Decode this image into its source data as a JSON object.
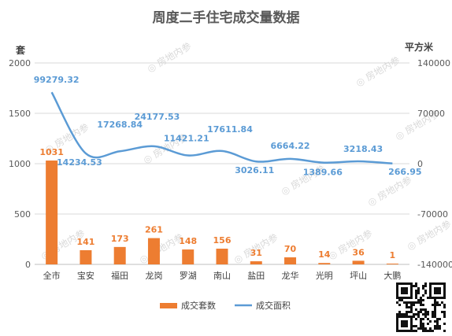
{
  "chart_data": {
    "type": "bar",
    "title": "周度二手住宅成交量数据",
    "ylabel": "套",
    "y2label": "平方米",
    "ylim": [
      0,
      2000
    ],
    "yticks": [
      0,
      500,
      1000,
      1500,
      2000
    ],
    "y2lim": [
      -140000,
      140000
    ],
    "y2ticks": [
      -140000,
      -70000,
      0,
      70000,
      140000
    ],
    "y2tick_labels": [
      "-140000",
      "-70000",
      "0",
      "70000",
      "140000"
    ],
    "categories": [
      "全市",
      "宝安",
      "福田",
      "龙岗",
      "罗湖",
      "南山",
      "盐田",
      "龙华",
      "光明",
      "坪山",
      "大鹏"
    ],
    "series": [
      {
        "name": "成交套数",
        "type": "bar",
        "axis": "left",
        "color": "#ed7d31",
        "values": [
          1031,
          141,
          173,
          261,
          148,
          156,
          31,
          70,
          14,
          36,
          1
        ],
        "labels": [
          "1031",
          "141",
          "173",
          "261",
          "148",
          "156",
          "31",
          "70",
          "14",
          "36",
          "1"
        ]
      },
      {
        "name": "成交面积",
        "type": "line",
        "axis": "right",
        "color": "#5b9bd5",
        "values": [
          99279.32,
          14234.53,
          17268.84,
          24177.53,
          11421.21,
          17611.84,
          3026.11,
          6664.22,
          1389.66,
          3218.43,
          266.95
        ],
        "labels": [
          "99279.32",
          "14234.53",
          "17268.84",
          "24177.53",
          "11421.21",
          "17611.84",
          "3026.11",
          "6664.22",
          "1389.66",
          "3218.43",
          "266.95"
        ]
      }
    ],
    "legend_position": "bottom",
    "grid": true
  },
  "watermark": "房地内参"
}
